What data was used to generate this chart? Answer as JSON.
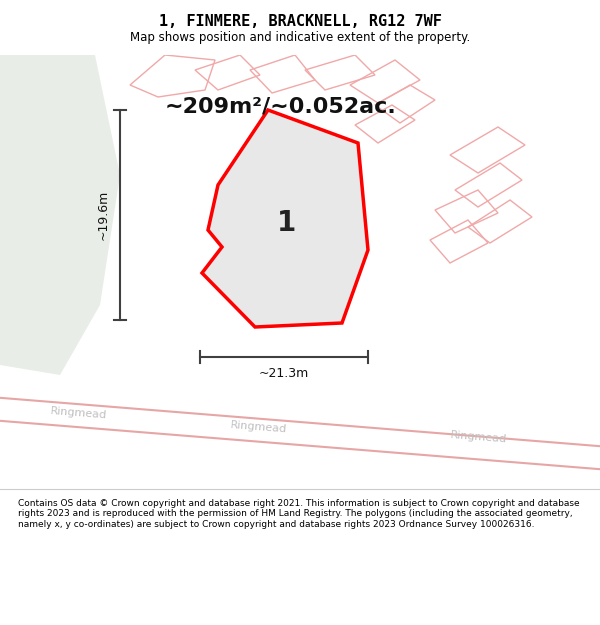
{
  "title": "1, FINMERE, BRACKNELL, RG12 7WF",
  "subtitle": "Map shows position and indicative extent of the property.",
  "area_text": "~209m²/~0.052ac.",
  "width_label": "~21.3m",
  "height_label": "~19.6m",
  "plot_label": "1",
  "footer_text": "Contains OS data © Crown copyright and database right 2021. This information is subject to Crown copyright and database rights 2023 and is reproduced with the permission of HM Land Registry. The polygons (including the associated geometry, namely x, y co-ordinates) are subject to Crown copyright and database rights 2023 Ordnance Survey 100026316.",
  "map_bg": "#f8f8f5",
  "green_area_color": "#e8ede8",
  "road_line_color": "#e09090",
  "main_polygon_color": "#ff0000",
  "main_polygon_fill": "#e8e8e8",
  "other_building_color": "#f0a8a8",
  "dim_line_color": "#404040",
  "title_color": "#000000",
  "footer_color": "#000000"
}
